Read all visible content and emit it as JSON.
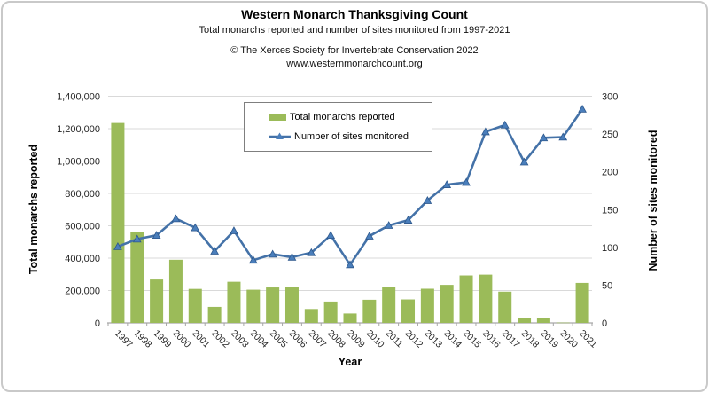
{
  "header": {
    "credit": "© The Xerces Society for Invertebrate Conservation 2022",
    "website": "www.westernmonarchcount.org"
  },
  "colors": {
    "bar_green": "#9BBB59",
    "line_blue": "#4472A8",
    "marker_fill": "#4A7EBB",
    "marker_edge": "#2C578C",
    "grid": "#D9D9D9",
    "axis": "#A6A6A6",
    "tick_text": "#262626",
    "frame_border": "#C9C9C9",
    "legend_border": "#7F7F7F"
  },
  "chart_data": {
    "type": "combo",
    "title": "Western Monarch Thanksgiving Count",
    "subtitle": "Total monarchs reported and number of sites monitored from 1997-2021",
    "categories": [
      1997,
      1998,
      1999,
      2000,
      2001,
      2002,
      2003,
      2004,
      2005,
      2006,
      2007,
      2008,
      2009,
      2010,
      2011,
      2012,
      2013,
      2014,
      2015,
      2016,
      2017,
      2018,
      2019,
      2020,
      2021
    ],
    "series": [
      {
        "name": "Total monarchs reported",
        "type": "bar",
        "axis": "left",
        "color": "#9BBB59",
        "values": [
          1235000,
          564000,
          268000,
          390000,
          210000,
          99000,
          254000,
          205000,
          219000,
          221000,
          86000,
          132000,
          58000,
          143000,
          222000,
          145000,
          211000,
          235000,
          293000,
          298000,
          193000,
          28000,
          29000,
          2000,
          247000
        ]
      },
      {
        "name": "Number of sites monitored",
        "type": "line",
        "marker": "triangle",
        "axis": "right",
        "color": "#4472A8",
        "values": [
          101,
          111,
          116,
          138,
          126,
          95,
          122,
          83,
          91,
          87,
          93,
          116,
          77,
          115,
          129,
          136,
          162,
          183,
          186,
          253,
          262,
          213,
          245,
          246,
          283
        ]
      }
    ],
    "x_axis": {
      "label": "Year"
    },
    "left_axis": {
      "label": "Total monarchs reported",
      "min": 0,
      "max": 1400000,
      "step": 200000
    },
    "right_axis": {
      "label": "Number of sites monitored",
      "min": 0,
      "max": 300,
      "step": 50
    },
    "grid": true,
    "legend_position": "upper-center"
  }
}
